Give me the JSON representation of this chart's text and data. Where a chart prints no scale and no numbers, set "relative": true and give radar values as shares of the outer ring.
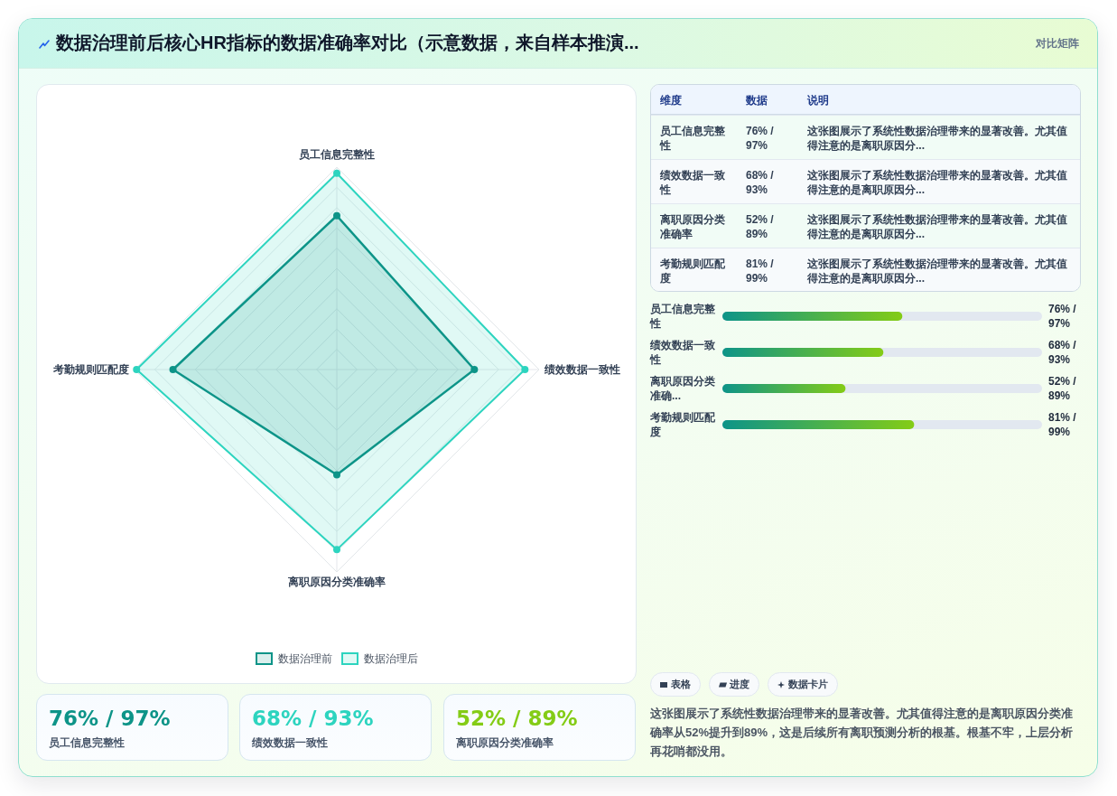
{
  "chart_data": [
    {
      "type": "radar",
      "title": "数据治理前后核心HR指标的数据准确率对比（示意数据，来自样本推演...",
      "annotations": [
        "对比矩阵"
      ],
      "categories": [
        "员工信息完整性",
        "绩效数据一致性",
        "离职原因分类准确率",
        "考勤规则匹配度"
      ],
      "relative": true,
      "series": [
        {
          "name": "数据治理前",
          "color": "#0d9488",
          "values": [
            0.76,
            0.68,
            0.52,
            0.81
          ]
        },
        {
          "name": "数据治理后",
          "color": "#2dd4bf",
          "values": [
            0.97,
            0.93,
            0.89,
            0.99
          ]
        }
      ],
      "legend": "bottom",
      "marker": "circle",
      "grid": true
    },
    {
      "type": "other",
      "annotations": [
        "维度",
        "数据",
        "说明",
        "员工信息完整性",
        "76% / 97%",
        "这张图展示了系统性数据治理带来的显著改善。尤其值得注意的是离职原因分...",
        "绩效数据一致性",
        "68% / 93%",
        "这张图展示了系统性数据治理带来的显著改善。尤其值得注意的是离职原因分...",
        "离职原因分类准确率",
        "52% / 89%",
        "这张图展示了系统性数据治理带来的显著改善。尤其值得注意的是离职原因分...",
        "考勤规则匹配度",
        "81% / 99%",
        "这张图展示了系统性数据治理带来的显著改善。尤其值得注意的是离职原因分..."
      ]
    },
    {
      "type": "bar",
      "orientation": "horizontal",
      "categories": [
        "员工信息完整性",
        "绩效数据一致性",
        "离职原因分类准确...",
        "考勤规则匹配度"
      ],
      "values": [
        76,
        68,
        52,
        81
      ],
      "value_labels": [
        "76% / 97%",
        "68% / 93%",
        "52% / 89%",
        "81% / 99%"
      ],
      "color": "#0d9488",
      "xlim": [
        0,
        135
      ],
      "tick_labels": "y"
    },
    {
      "type": "other",
      "categories": [
        "员工信息完整性",
        "绩效数据一致性",
        "离职原因分类准确率"
      ],
      "value_labels": [
        "76% / 97%",
        "68% / 93%",
        "52% / 89%"
      ]
    },
    {
      "type": "other",
      "annotations": [
        "表格",
        "进度",
        "数据卡片",
        "这张图展示了系统性数据治理带来的显著改善。尤其值得注意的是离职原因分类准确率从52%提升到89%，这是后续所有离职预测分析的根基。根基不牢，上层分析再花哨都没用。"
      ]
    }
  ]
}
